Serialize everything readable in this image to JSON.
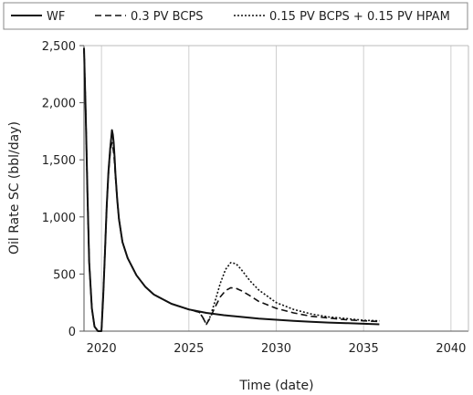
{
  "chart_data": {
    "type": "line",
    "xlabel": "Time (date)",
    "ylabel": "Oil Rate SC (bbl/day)",
    "xlim": [
      2019,
      2041
    ],
    "ylim": [
      0,
      2500
    ],
    "x_ticks": [
      2020,
      2025,
      2030,
      2035,
      2040
    ],
    "x_tick_labels": [
      "2020",
      "2025",
      "2030",
      "2035",
      "2040"
    ],
    "y_ticks": [
      0,
      500,
      1000,
      1500,
      2000,
      2500
    ],
    "y_tick_labels": [
      "0",
      "500",
      "1,000",
      "1,500",
      "2,000",
      "2,500"
    ],
    "grid": "vertical",
    "legend_position": "top",
    "series": [
      {
        "name": "WF",
        "style": "solid",
        "x": [
          2019.0,
          2019.1,
          2019.2,
          2019.3,
          2019.45,
          2019.6,
          2019.8,
          2019.95,
          2020.0,
          2020.1,
          2020.2,
          2020.3,
          2020.4,
          2020.5,
          2020.55,
          2020.6,
          2020.65,
          2020.7,
          2020.75,
          2020.8,
          2020.9,
          2021.0,
          2021.2,
          2021.5,
          2022.0,
          2022.5,
          2023.0,
          2024.0,
          2025.0,
          2026.0,
          2027.0,
          2028.0,
          2029.0,
          2030.0,
          2031.0,
          2032.0,
          2033.0,
          2034.0,
          2035.0,
          2035.9
        ],
        "y": [
          2480,
          1900,
          1200,
          600,
          200,
          40,
          0,
          0,
          0,
          300,
          700,
          1100,
          1400,
          1600,
          1680,
          1760,
          1720,
          1650,
          1520,
          1380,
          1150,
          980,
          780,
          640,
          490,
          390,
          320,
          240,
          190,
          160,
          140,
          125,
          110,
          100,
          90,
          82,
          75,
          70,
          65,
          60
        ]
      },
      {
        "name": "0.3 PV BCPS",
        "style": "dashed",
        "x": [
          2019.0,
          2019.1,
          2019.2,
          2019.3,
          2019.45,
          2019.6,
          2019.8,
          2019.95,
          2020.0,
          2020.1,
          2020.2,
          2020.3,
          2020.4,
          2020.5,
          2020.55,
          2020.6,
          2020.65,
          2020.7,
          2020.75,
          2020.8,
          2020.9,
          2021.0,
          2021.2,
          2021.5,
          2022.0,
          2022.5,
          2023.0,
          2024.0,
          2025.0,
          2025.6,
          2025.8,
          2026.0,
          2026.2,
          2026.5,
          2026.8,
          2027.1,
          2027.4,
          2027.7,
          2028.0,
          2028.5,
          2029.0,
          2030.0,
          2031.0,
          2032.0,
          2033.0,
          2034.0,
          2035.0,
          2035.9
        ],
        "y": [
          2480,
          1900,
          1200,
          600,
          200,
          40,
          0,
          0,
          0,
          300,
          700,
          1100,
          1380,
          1560,
          1620,
          1650,
          1610,
          1560,
          1470,
          1360,
          1150,
          980,
          780,
          640,
          490,
          390,
          320,
          240,
          190,
          165,
          120,
          60,
          110,
          210,
          300,
          355,
          380,
          375,
          355,
          310,
          260,
          200,
          160,
          130,
          115,
          100,
          90,
          85
        ]
      },
      {
        "name": "0.15 PV BCPS + 0.15 PV HPAM",
        "style": "dotted",
        "x": [
          2019.0,
          2019.1,
          2019.2,
          2019.3,
          2019.45,
          2019.6,
          2019.8,
          2019.95,
          2020.0,
          2020.1,
          2020.2,
          2020.3,
          2020.4,
          2020.5,
          2020.55,
          2020.6,
          2020.65,
          2020.7,
          2020.75,
          2020.8,
          2020.9,
          2021.0,
          2021.2,
          2021.5,
          2022.0,
          2022.5,
          2023.0,
          2024.0,
          2025.0,
          2025.6,
          2025.8,
          2026.0,
          2026.2,
          2026.5,
          2026.8,
          2027.1,
          2027.4,
          2027.7,
          2028.0,
          2028.5,
          2029.0,
          2030.0,
          2031.0,
          2032.0,
          2033.0,
          2034.0,
          2035.0,
          2035.9
        ],
        "y": [
          2480,
          1900,
          1200,
          600,
          200,
          40,
          0,
          0,
          0,
          300,
          700,
          1100,
          1400,
          1600,
          1680,
          1740,
          1700,
          1640,
          1520,
          1380,
          1150,
          980,
          780,
          640,
          490,
          390,
          320,
          240,
          190,
          165,
          120,
          60,
          120,
          260,
          420,
          540,
          600,
          590,
          540,
          440,
          360,
          250,
          190,
          150,
          125,
          110,
          95,
          90
        ]
      }
    ]
  }
}
